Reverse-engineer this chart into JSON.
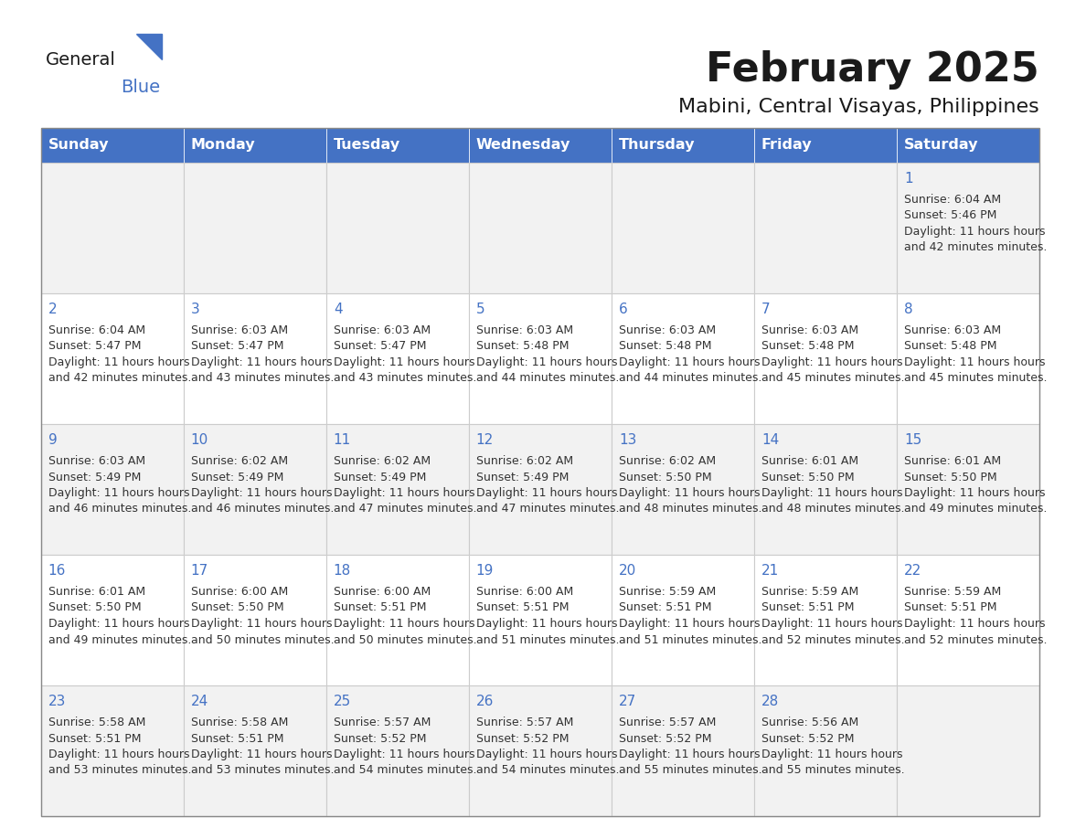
{
  "title": "February 2025",
  "subtitle": "Mabini, Central Visayas, Philippines",
  "days_of_week": [
    "Sunday",
    "Monday",
    "Tuesday",
    "Wednesday",
    "Thursday",
    "Friday",
    "Saturday"
  ],
  "header_bg": "#4472C4",
  "header_text": "#FFFFFF",
  "cell_bg_odd": "#F2F2F2",
  "cell_bg_even": "#FFFFFF",
  "cell_border": "#AAAAAA",
  "title_color": "#1a1a1a",
  "subtitle_color": "#1a1a1a",
  "day_text_color": "#4472C4",
  "info_text_color": "#333333",
  "calendar": [
    [
      null,
      null,
      null,
      null,
      null,
      null,
      {
        "day": 1,
        "sunrise": "6:04 AM",
        "sunset": "5:46 PM",
        "daylight": "11 hours and 42 minutes"
      }
    ],
    [
      {
        "day": 2,
        "sunrise": "6:04 AM",
        "sunset": "5:47 PM",
        "daylight": "11 hours and 42 minutes"
      },
      {
        "day": 3,
        "sunrise": "6:03 AM",
        "sunset": "5:47 PM",
        "daylight": "11 hours and 43 minutes"
      },
      {
        "day": 4,
        "sunrise": "6:03 AM",
        "sunset": "5:47 PM",
        "daylight": "11 hours and 43 minutes"
      },
      {
        "day": 5,
        "sunrise": "6:03 AM",
        "sunset": "5:48 PM",
        "daylight": "11 hours and 44 minutes"
      },
      {
        "day": 6,
        "sunrise": "6:03 AM",
        "sunset": "5:48 PM",
        "daylight": "11 hours and 44 minutes"
      },
      {
        "day": 7,
        "sunrise": "6:03 AM",
        "sunset": "5:48 PM",
        "daylight": "11 hours and 45 minutes"
      },
      {
        "day": 8,
        "sunrise": "6:03 AM",
        "sunset": "5:48 PM",
        "daylight": "11 hours and 45 minutes"
      }
    ],
    [
      {
        "day": 9,
        "sunrise": "6:03 AM",
        "sunset": "5:49 PM",
        "daylight": "11 hours and 46 minutes"
      },
      {
        "day": 10,
        "sunrise": "6:02 AM",
        "sunset": "5:49 PM",
        "daylight": "11 hours and 46 minutes"
      },
      {
        "day": 11,
        "sunrise": "6:02 AM",
        "sunset": "5:49 PM",
        "daylight": "11 hours and 47 minutes"
      },
      {
        "day": 12,
        "sunrise": "6:02 AM",
        "sunset": "5:49 PM",
        "daylight": "11 hours and 47 minutes"
      },
      {
        "day": 13,
        "sunrise": "6:02 AM",
        "sunset": "5:50 PM",
        "daylight": "11 hours and 48 minutes"
      },
      {
        "day": 14,
        "sunrise": "6:01 AM",
        "sunset": "5:50 PM",
        "daylight": "11 hours and 48 minutes"
      },
      {
        "day": 15,
        "sunrise": "6:01 AM",
        "sunset": "5:50 PM",
        "daylight": "11 hours and 49 minutes"
      }
    ],
    [
      {
        "day": 16,
        "sunrise": "6:01 AM",
        "sunset": "5:50 PM",
        "daylight": "11 hours and 49 minutes"
      },
      {
        "day": 17,
        "sunrise": "6:00 AM",
        "sunset": "5:50 PM",
        "daylight": "11 hours and 50 minutes"
      },
      {
        "day": 18,
        "sunrise": "6:00 AM",
        "sunset": "5:51 PM",
        "daylight": "11 hours and 50 minutes"
      },
      {
        "day": 19,
        "sunrise": "6:00 AM",
        "sunset": "5:51 PM",
        "daylight": "11 hours and 51 minutes"
      },
      {
        "day": 20,
        "sunrise": "5:59 AM",
        "sunset": "5:51 PM",
        "daylight": "11 hours and 51 minutes"
      },
      {
        "day": 21,
        "sunrise": "5:59 AM",
        "sunset": "5:51 PM",
        "daylight": "11 hours and 52 minutes"
      },
      {
        "day": 22,
        "sunrise": "5:59 AM",
        "sunset": "5:51 PM",
        "daylight": "11 hours and 52 minutes"
      }
    ],
    [
      {
        "day": 23,
        "sunrise": "5:58 AM",
        "sunset": "5:51 PM",
        "daylight": "11 hours and 53 minutes"
      },
      {
        "day": 24,
        "sunrise": "5:58 AM",
        "sunset": "5:51 PM",
        "daylight": "11 hours and 53 minutes"
      },
      {
        "day": 25,
        "sunrise": "5:57 AM",
        "sunset": "5:52 PM",
        "daylight": "11 hours and 54 minutes"
      },
      {
        "day": 26,
        "sunrise": "5:57 AM",
        "sunset": "5:52 PM",
        "daylight": "11 hours and 54 minutes"
      },
      {
        "day": 27,
        "sunrise": "5:57 AM",
        "sunset": "5:52 PM",
        "daylight": "11 hours and 55 minutes"
      },
      {
        "day": 28,
        "sunrise": "5:56 AM",
        "sunset": "5:52 PM",
        "daylight": "11 hours and 55 minutes"
      },
      null
    ]
  ]
}
